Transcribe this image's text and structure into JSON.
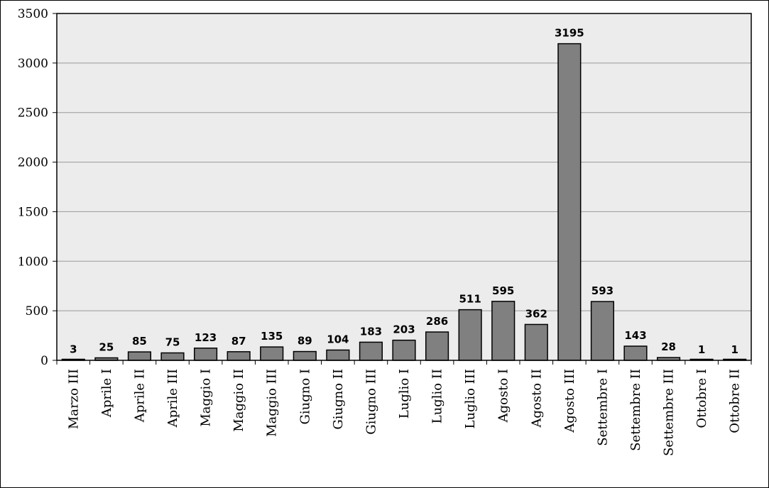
{
  "chart_data": {
    "type": "bar",
    "title": "",
    "xlabel": "",
    "ylabel": "",
    "ylim": [
      0,
      3500
    ],
    "yticks": [
      0,
      500,
      1000,
      1500,
      2000,
      2500,
      3000,
      3500
    ],
    "grid": true,
    "legend": "none",
    "colors": {
      "bar": "#808080",
      "plot_background": "#ececec",
      "grid": "#999999"
    },
    "categories": [
      "Marzo III",
      "Aprile I",
      "Aprile II",
      "Aprile III",
      "Maggio I",
      "Maggio II",
      "Maggio III",
      "Giugno I",
      "Giugno II",
      "Giugno III",
      "Luglio I",
      "Luglio II",
      "Luglio III",
      "Agosto I",
      "Agosto II",
      "Agosto III",
      "Settembre I",
      "Settembre II",
      "Settembre III",
      "Ottobre I",
      "Ottobre II"
    ],
    "values": [
      3,
      25,
      85,
      75,
      123,
      87,
      135,
      89,
      104,
      183,
      203,
      286,
      511,
      595,
      362,
      3195,
      593,
      143,
      28,
      1,
      1
    ]
  }
}
